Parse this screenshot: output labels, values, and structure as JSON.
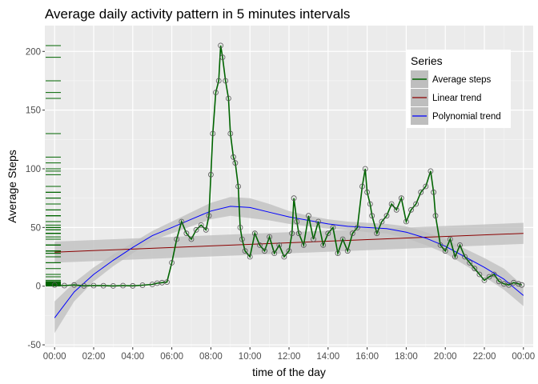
{
  "chart_data": {
    "type": "line",
    "title": "Average daily activity pattern in 5 minutes intervals",
    "xlabel": "time of the day",
    "ylabel": "Average Steps",
    "xlim": [
      -0.5,
      24.5
    ],
    "ylim": [
      -52,
      222
    ],
    "x_ticks": [
      0,
      2,
      4,
      6,
      8,
      10,
      12,
      14,
      16,
      18,
      20,
      22,
      24
    ],
    "x_tick_labels": [
      "00:00",
      "02:00",
      "04:00",
      "06:00",
      "08:00",
      "10:00",
      "12:00",
      "14:00",
      "16:00",
      "18:00",
      "20:00",
      "22:00",
      "00:00"
    ],
    "y_ticks": [
      -50,
      0,
      50,
      100,
      150,
      200
    ],
    "y_tick_labels": [
      "-50",
      "0",
      "50",
      "100",
      "150",
      "200"
    ],
    "grid": true,
    "background": "#ebebeb",
    "legend": {
      "title": "Series",
      "position": "top-right",
      "entries": [
        "Average steps",
        "Linear trend",
        "Polynomial trend"
      ]
    },
    "colors": {
      "average_steps": "#006400",
      "linear_trend": "#8b0000",
      "polynomial_trend": "#0000ff",
      "confidence_band": "#bebebe",
      "point_outline": "#555555"
    },
    "series": [
      {
        "name": "Average steps",
        "x": [
          0,
          0.5,
          1,
          1.5,
          2,
          2.5,
          3,
          3.5,
          4,
          4.5,
          5,
          5.25,
          5.5,
          5.75,
          6,
          6.25,
          6.5,
          6.75,
          7,
          7.25,
          7.5,
          7.75,
          7.9,
          8,
          8.1,
          8.25,
          8.4,
          8.5,
          8.6,
          8.75,
          8.9,
          9,
          9.15,
          9.25,
          9.4,
          9.5,
          9.6,
          9.75,
          10,
          10.25,
          10.5,
          10.75,
          11,
          11.25,
          11.5,
          11.75,
          12,
          12.15,
          12.25,
          12.4,
          12.5,
          12.75,
          13,
          13.25,
          13.5,
          13.75,
          14,
          14.25,
          14.5,
          14.75,
          15,
          15.25,
          15.5,
          15.75,
          15.9,
          16,
          16.15,
          16.25,
          16.5,
          16.75,
          17,
          17.25,
          17.5,
          17.75,
          18,
          18.25,
          18.5,
          18.75,
          19,
          19.25,
          19.4,
          19.5,
          19.75,
          20,
          20.25,
          20.5,
          20.75,
          21,
          21.25,
          21.5,
          21.75,
          22,
          22.25,
          22.5,
          22.75,
          23,
          23.25,
          23.5,
          23.75,
          23.92
        ],
        "values": [
          1,
          0.5,
          1,
          0.3,
          0.5,
          0.4,
          0.2,
          0.5,
          0.3,
          0.8,
          1.5,
          2.5,
          3,
          3.5,
          20,
          40,
          55,
          45,
          40,
          48,
          52,
          48,
          60,
          95,
          130,
          165,
          175,
          205,
          195,
          175,
          160,
          130,
          110,
          105,
          85,
          50,
          40,
          30,
          25,
          45,
          35,
          30,
          42,
          28,
          35,
          25,
          30,
          45,
          75,
          55,
          45,
          35,
          60,
          40,
          55,
          35,
          45,
          50,
          28,
          40,
          30,
          45,
          50,
          85,
          100,
          80,
          70,
          60,
          45,
          55,
          60,
          70,
          65,
          75,
          55,
          65,
          70,
          80,
          85,
          98,
          80,
          60,
          35,
          30,
          40,
          25,
          35,
          25,
          20,
          15,
          10,
          5,
          8,
          10,
          4,
          2,
          1,
          3,
          2,
          1
        ]
      },
      {
        "name": "Linear trend",
        "x": [
          0,
          24
        ],
        "values": [
          29,
          45
        ],
        "band_upper": [
          38,
          54
        ],
        "band_lower": [
          20,
          36
        ]
      },
      {
        "name": "Polynomial trend",
        "x": [
          0,
          1,
          2,
          3,
          4,
          5,
          6,
          7,
          8,
          9,
          10,
          11,
          12,
          13,
          14,
          15,
          16,
          17,
          18,
          19,
          20,
          21,
          22,
          23,
          24
        ],
        "values": [
          -27,
          -5,
          10,
          22,
          33,
          43,
          50,
          57,
          64,
          68,
          67,
          63,
          59,
          56,
          53,
          51,
          50,
          49,
          46,
          41,
          34,
          25,
          16,
          6,
          -8
        ],
        "band_upper": [
          -13,
          3,
          16,
          27,
          37,
          47,
          55,
          63,
          71,
          76,
          75,
          70,
          64,
          60,
          57,
          55,
          54,
          53,
          51,
          46,
          40,
          32,
          24,
          15,
          0
        ],
        "band_lower": [
          -40,
          -13,
          4,
          17,
          28,
          39,
          45,
          51,
          57,
          60,
          58,
          56,
          53,
          51,
          49,
          48,
          46,
          45,
          41,
          35,
          28,
          18,
          8,
          -3,
          -17
        ]
      }
    ]
  }
}
